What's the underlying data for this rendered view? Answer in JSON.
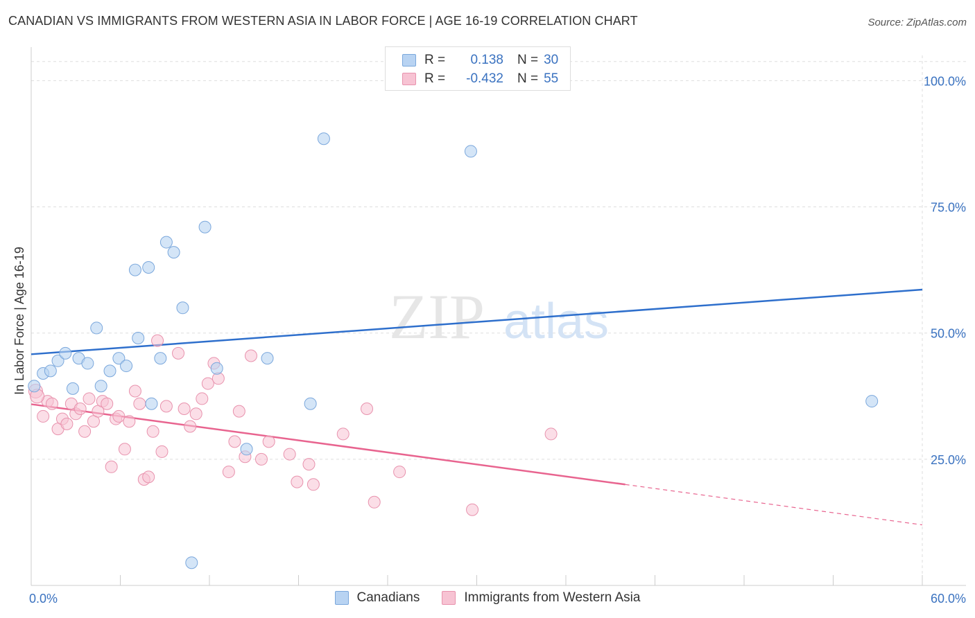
{
  "title": "CANADIAN VS IMMIGRANTS FROM WESTERN ASIA IN LABOR FORCE | AGE 16-19 CORRELATION CHART",
  "source": "Source: ZipAtlas.com",
  "watermark": {
    "zip": "ZIP",
    "atlas": "atlas"
  },
  "legend": {
    "rows": [
      {
        "r_label": "R =",
        "r_value": "0.138",
        "n_label": "N =",
        "n_value": "30"
      },
      {
        "r_label": "R =",
        "r_value": "-0.432",
        "n_label": "N =",
        "n_value": "55"
      }
    ]
  },
  "bottom_legend": {
    "canadians": "Canadians",
    "immigrants": "Immigrants from Western Asia"
  },
  "colors": {
    "blue_fill": "#b8d3f2",
    "blue_stroke": "#7aa7dc",
    "blue_line": "#2e6fcc",
    "pink_fill": "#f7c3d3",
    "pink_stroke": "#e892ad",
    "pink_line": "#e8648f",
    "grid": "#dddddd",
    "axis_text": "#3a72c0"
  },
  "chart_data": {
    "type": "scatter",
    "title": "CANADIAN VS IMMIGRANTS FROM WESTERN ASIA IN LABOR FORCE | AGE 16-19 CORRELATION CHART",
    "xlabel": "",
    "ylabel": "In Labor Force | Age 16-19",
    "xlim": [
      0,
      60
    ],
    "ylim": [
      0,
      105
    ],
    "x_tick_labels": [
      "0.0%",
      "60.0%"
    ],
    "y_ticks": [
      25,
      50,
      75,
      100
    ],
    "y_tick_labels": [
      "25.0%",
      "50.0%",
      "75.0%",
      "100.0%"
    ],
    "grid": true,
    "series": [
      {
        "name": "Canadians",
        "color": "#7aa7dc",
        "points": [
          [
            0.2,
            39.5
          ],
          [
            0.8,
            42.0
          ],
          [
            1.3,
            42.5
          ],
          [
            1.8,
            44.5
          ],
          [
            2.3,
            46.0
          ],
          [
            2.8,
            39.0
          ],
          [
            3.2,
            45.0
          ],
          [
            3.8,
            44.0
          ],
          [
            4.4,
            51.0
          ],
          [
            4.7,
            39.5
          ],
          [
            5.3,
            42.5
          ],
          [
            5.9,
            45.0
          ],
          [
            6.4,
            43.5
          ],
          [
            7.0,
            62.5
          ],
          [
            7.2,
            49.0
          ],
          [
            7.9,
            63.0
          ],
          [
            8.1,
            36.0
          ],
          [
            8.7,
            45.0
          ],
          [
            9.1,
            68.0
          ],
          [
            9.6,
            66.0
          ],
          [
            10.2,
            55.0
          ],
          [
            10.8,
            4.5
          ],
          [
            11.7,
            71.0
          ],
          [
            12.5,
            43.0
          ],
          [
            14.5,
            27.0
          ],
          [
            15.9,
            45.0
          ],
          [
            18.8,
            36.0
          ],
          [
            19.7,
            88.5
          ],
          [
            29.6,
            86.0
          ],
          [
            56.6,
            36.5
          ]
        ],
        "trend": {
          "x": [
            0,
            60
          ],
          "y": [
            45.8,
            58.6
          ]
        }
      },
      {
        "name": "Immigrants from Western Asia",
        "color": "#e892ad",
        "points": [
          [
            0.3,
            38.5
          ],
          [
            0.8,
            33.5
          ],
          [
            1.1,
            36.5
          ],
          [
            1.4,
            36.0
          ],
          [
            1.8,
            31.0
          ],
          [
            2.1,
            33.0
          ],
          [
            2.4,
            32.0
          ],
          [
            2.7,
            36.0
          ],
          [
            3.0,
            34.0
          ],
          [
            3.3,
            35.0
          ],
          [
            3.6,
            30.5
          ],
          [
            3.9,
            37.0
          ],
          [
            4.2,
            32.5
          ],
          [
            4.5,
            34.5
          ],
          [
            4.8,
            36.5
          ],
          [
            5.1,
            36.0
          ],
          [
            5.4,
            23.5
          ],
          [
            5.7,
            33.0
          ],
          [
            5.9,
            33.5
          ],
          [
            6.3,
            27.0
          ],
          [
            6.6,
            32.5
          ],
          [
            7.0,
            38.5
          ],
          [
            7.3,
            36.0
          ],
          [
            7.6,
            21.0
          ],
          [
            7.9,
            21.5
          ],
          [
            8.2,
            30.5
          ],
          [
            8.5,
            48.5
          ],
          [
            8.8,
            26.5
          ],
          [
            9.1,
            35.5
          ],
          [
            9.9,
            46.0
          ],
          [
            10.3,
            35.0
          ],
          [
            10.7,
            31.5
          ],
          [
            11.1,
            34.0
          ],
          [
            11.5,
            37.0
          ],
          [
            11.9,
            40.0
          ],
          [
            12.3,
            44.0
          ],
          [
            12.6,
            41.0
          ],
          [
            13.3,
            22.5
          ],
          [
            13.7,
            28.5
          ],
          [
            14.0,
            34.5
          ],
          [
            14.4,
            25.5
          ],
          [
            14.8,
            45.5
          ],
          [
            15.5,
            25.0
          ],
          [
            16.0,
            28.5
          ],
          [
            17.4,
            26.0
          ],
          [
            17.9,
            20.5
          ],
          [
            18.7,
            24.0
          ],
          [
            19.0,
            20.0
          ],
          [
            21.0,
            30.0
          ],
          [
            22.6,
            35.0
          ],
          [
            23.1,
            16.5
          ],
          [
            24.8,
            22.5
          ],
          [
            29.7,
            15.0
          ],
          [
            35.0,
            30.0
          ],
          [
            0.4,
            37.5
          ]
        ],
        "trend": {
          "x": [
            0,
            40
          ],
          "y": [
            35.9,
            20.0
          ]
        },
        "trend_dashed": {
          "x": [
            40,
            60
          ],
          "y": [
            20.0,
            12.0
          ]
        }
      }
    ]
  }
}
